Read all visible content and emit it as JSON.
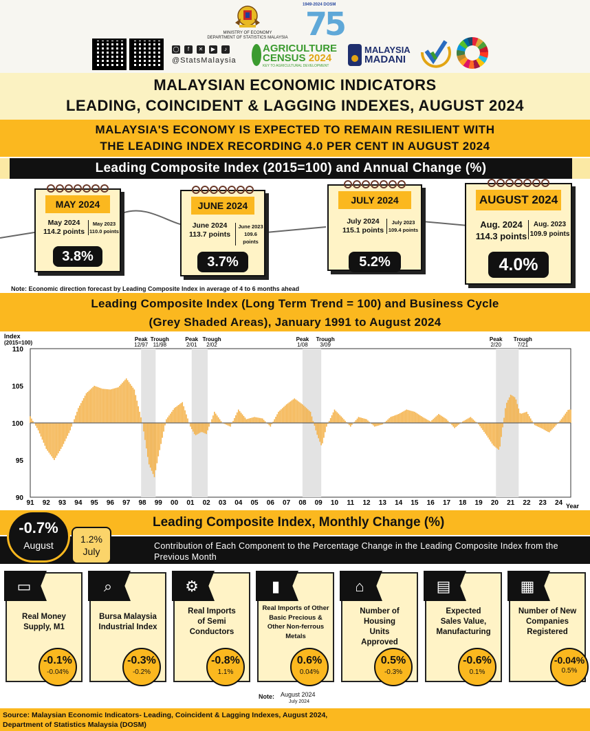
{
  "header": {
    "ministry_line1": "MINISTRY OF ECONOMY",
    "ministry_line2": "DEPARTMENT OF STATISTICS MALAYSIA",
    "dosm_years": "1949-2024 DOSM",
    "dosm_number": "75",
    "social_handle": "@StatsMalaysia",
    "agri_line1": "AGRICULTURE",
    "agri_line2_a": "CENSUS",
    "agri_line2_b": "2024",
    "agri_tagline": "KEY TO AGRICULTURAL DEVELOPMENT",
    "madani_line1": "MALAYSIA",
    "madani_line2": "MADANI"
  },
  "title": {
    "line1": "MALAYSIAN ECONOMIC INDICATORS",
    "line2": "LEADING, COINCIDENT & LAGGING INDEXES, AUGUST 2024"
  },
  "headline": {
    "line1": "MALAYSIA'S ECONOMY IS EXPECTED TO REMAIN RESILIENT WITH",
    "line2": "THE LEADING INDEX RECORDING 4.0 PER CENT IN AUGUST 2024"
  },
  "annual_section_title": "Leading Composite Index (2015=100) and Annual Change (%)",
  "cards": [
    {
      "month": "MAY 2024",
      "cur_label": "May 2024",
      "cur_value": "114.2 points",
      "prev_label": "May 2023",
      "prev_value": "110.0 points",
      "change": "3.8%"
    },
    {
      "month": "JUNE 2024",
      "cur_label": "June 2024",
      "cur_value": "113.7 points",
      "prev_label": "June 2023",
      "prev_value": "109.6 points",
      "change": "3.7%"
    },
    {
      "month": "JULY 2024",
      "cur_label": "July 2024",
      "cur_value": "115.1 points",
      "prev_label": "July 2023",
      "prev_value": "109.4 points",
      "change": "5.2%"
    },
    {
      "month": "AUGUST 2024",
      "cur_label": "Aug. 2024",
      "cur_value": "114.3 points",
      "prev_label": "Aug. 2023",
      "prev_value": "109.9 points",
      "change": "4.0%"
    }
  ],
  "note_forecast": "Note: Economic direction forecast by Leading Composite Index in average of 4 to 6 months ahead",
  "long_term_title": {
    "line1": "Leading Composite Index (Long Term Trend = 100) and Business Cycle",
    "line2": "(Grey Shaded Areas), January 1991 to August 2024"
  },
  "chart_data": {
    "type": "area",
    "ylabel_line1": "Index",
    "ylabel_line2": "(2015=100)",
    "xlabel": "Year",
    "ylim": [
      90,
      110
    ],
    "yticks": [
      90,
      95,
      100,
      105,
      110
    ],
    "baseline": 100,
    "x_tick_labels": [
      "91",
      "92",
      "93",
      "94",
      "95",
      "96",
      "97",
      "98",
      "99",
      "00",
      "01",
      "02",
      "03",
      "04",
      "05",
      "06",
      "07",
      "08",
      "09",
      "10",
      "11",
      "12",
      "13",
      "14",
      "15",
      "16",
      "17",
      "18",
      "19",
      "20",
      "21",
      "22",
      "23",
      "24"
    ],
    "x_range": [
      1991.0,
      2024.75
    ],
    "series": [
      {
        "values_note": "",
        "points": [
          [
            1991.0,
            100.9
          ],
          [
            1991.5,
            99.0
          ],
          [
            1992.0,
            96.5
          ],
          [
            1992.5,
            95.0
          ],
          [
            1993.0,
            96.8
          ],
          [
            1993.5,
            99.0
          ],
          [
            1994.0,
            102.0
          ],
          [
            1994.5,
            104.0
          ],
          [
            1995.0,
            105.0
          ],
          [
            1995.5,
            104.6
          ],
          [
            1996.0,
            104.5
          ],
          [
            1996.5,
            104.8
          ],
          [
            1997.0,
            106.0
          ],
          [
            1997.5,
            104.5
          ],
          [
            1998.0,
            100.0
          ],
          [
            1998.4,
            94.5
          ],
          [
            1998.75,
            92.7
          ],
          [
            1999.0,
            95.5
          ],
          [
            1999.5,
            100.5
          ],
          [
            2000.0,
            102.0
          ],
          [
            2000.5,
            102.8
          ],
          [
            2001.0,
            99.5
          ],
          [
            2001.3,
            98.3
          ],
          [
            2001.7,
            98.8
          ],
          [
            2002.0,
            98.5
          ],
          [
            2002.5,
            101.5
          ],
          [
            2003.0,
            100.0
          ],
          [
            2003.5,
            99.5
          ],
          [
            2004.0,
            101.8
          ],
          [
            2004.5,
            100.5
          ],
          [
            2005.0,
            100.8
          ],
          [
            2005.5,
            100.6
          ],
          [
            2006.0,
            99.5
          ],
          [
            2006.5,
            101.5
          ],
          [
            2007.0,
            102.5
          ],
          [
            2007.5,
            103.3
          ],
          [
            2008.0,
            102.5
          ],
          [
            2008.5,
            101.5
          ],
          [
            2008.9,
            98.5
          ],
          [
            2009.2,
            96.8
          ],
          [
            2009.5,
            99.5
          ],
          [
            2010.0,
            101.8
          ],
          [
            2010.5,
            100.7
          ],
          [
            2011.0,
            99.5
          ],
          [
            2011.5,
            100.8
          ],
          [
            2012.0,
            100.5
          ],
          [
            2012.5,
            99.5
          ],
          [
            2013.0,
            99.8
          ],
          [
            2013.5,
            100.8
          ],
          [
            2014.0,
            101.2
          ],
          [
            2014.5,
            101.8
          ],
          [
            2015.0,
            101.5
          ],
          [
            2015.5,
            100.8
          ],
          [
            2016.0,
            100.2
          ],
          [
            2016.5,
            101.2
          ],
          [
            2017.0,
            100.5
          ],
          [
            2017.5,
            99.3
          ],
          [
            2018.0,
            100.2
          ],
          [
            2018.5,
            100.8
          ],
          [
            2019.0,
            99.8
          ],
          [
            2019.5,
            98.3
          ],
          [
            2019.9,
            97.0
          ],
          [
            2020.3,
            96.3
          ],
          [
            2020.7,
            102.5
          ],
          [
            2021.0,
            103.8
          ],
          [
            2021.3,
            103.4
          ],
          [
            2021.6,
            101.2
          ],
          [
            2022.0,
            101.5
          ],
          [
            2022.5,
            99.7
          ],
          [
            2023.0,
            99.2
          ],
          [
            2023.4,
            98.7
          ],
          [
            2023.8,
            99.6
          ],
          [
            2024.2,
            100.6
          ],
          [
            2024.6,
            101.8
          ]
        ]
      }
    ],
    "recessions": [
      {
        "peak_label": "Peak",
        "peak_date": "12/97",
        "trough_label": "Trough",
        "trough_date": "11/98",
        "start": 1997.92,
        "end": 1998.83
      },
      {
        "peak_label": "Peak",
        "peak_date": "2/01",
        "trough_label": "Trough",
        "trough_date": "2/02",
        "start": 2001.08,
        "end": 2002.08
      },
      {
        "peak_label": "Peak",
        "peak_date": "1/08",
        "trough_label": "Trough",
        "trough_date": "3/09",
        "start": 2008.0,
        "end": 2009.17
      },
      {
        "peak_label": "Peak",
        "peak_date": "2/20",
        "trough_label": "Trough",
        "trough_date": "7/21",
        "start": 2020.08,
        "end": 2021.5
      }
    ],
    "colors": {
      "bars": "#f4b24a",
      "recession": "#e3e3e3",
      "baseline": "#666666"
    }
  },
  "monthly": {
    "title": "Leading Composite Index, Monthly Change (%)",
    "subtitle": "Contribution of Each Component to the Percentage Change in the Leading Composite Index from the Previous Month",
    "aug_value": "-0.7%",
    "aug_label": "August",
    "jul_value": "1.2%",
    "jul_label": "July"
  },
  "components": [
    {
      "icon": "wallet-icon",
      "glyph": "▭",
      "name": "Real Money Supply, M1",
      "aug": "-0.1%",
      "jul": "-0.04%"
    },
    {
      "icon": "chart-magnifier-icon",
      "glyph": "⌕",
      "name": "Bursa Malaysia Industrial Index",
      "aug": "-0.3%",
      "jul": "-0.2%"
    },
    {
      "icon": "chip-icon",
      "glyph": "⚙",
      "name": "Real Imports of Semi Conductors",
      "aug": "-0.8%",
      "jul": "1.1%"
    },
    {
      "icon": "metal-bar-icon",
      "glyph": "▮",
      "name": "Real Imports of Other Basic Precious & Other Non-ferrous Metals",
      "aug": "0.6%",
      "jul": "0.04%"
    },
    {
      "icon": "house-icon",
      "glyph": "⌂",
      "name": "Number of Housing Units Approved",
      "aug": "0.5%",
      "jul": "-0.3%"
    },
    {
      "icon": "presentation-icon",
      "glyph": "▤",
      "name": "Expected Sales Value, Manufacturing",
      "aug": "-0.6%",
      "jul": "0.1%"
    },
    {
      "icon": "building-icon",
      "glyph": "▦",
      "name": "Number of New Companies Registered",
      "aug": "-0.04%",
      "jul": "0.5%"
    }
  ],
  "note_months": {
    "label": "Note:",
    "top": "August 2024",
    "bottom": "July 2024"
  },
  "source": {
    "line1": "Source: Malaysian Economic Indicators- Leading, Coincident & Lagging Indexes, August 2024,",
    "line2": "Department of Statistics Malaysia (DOSM)"
  }
}
